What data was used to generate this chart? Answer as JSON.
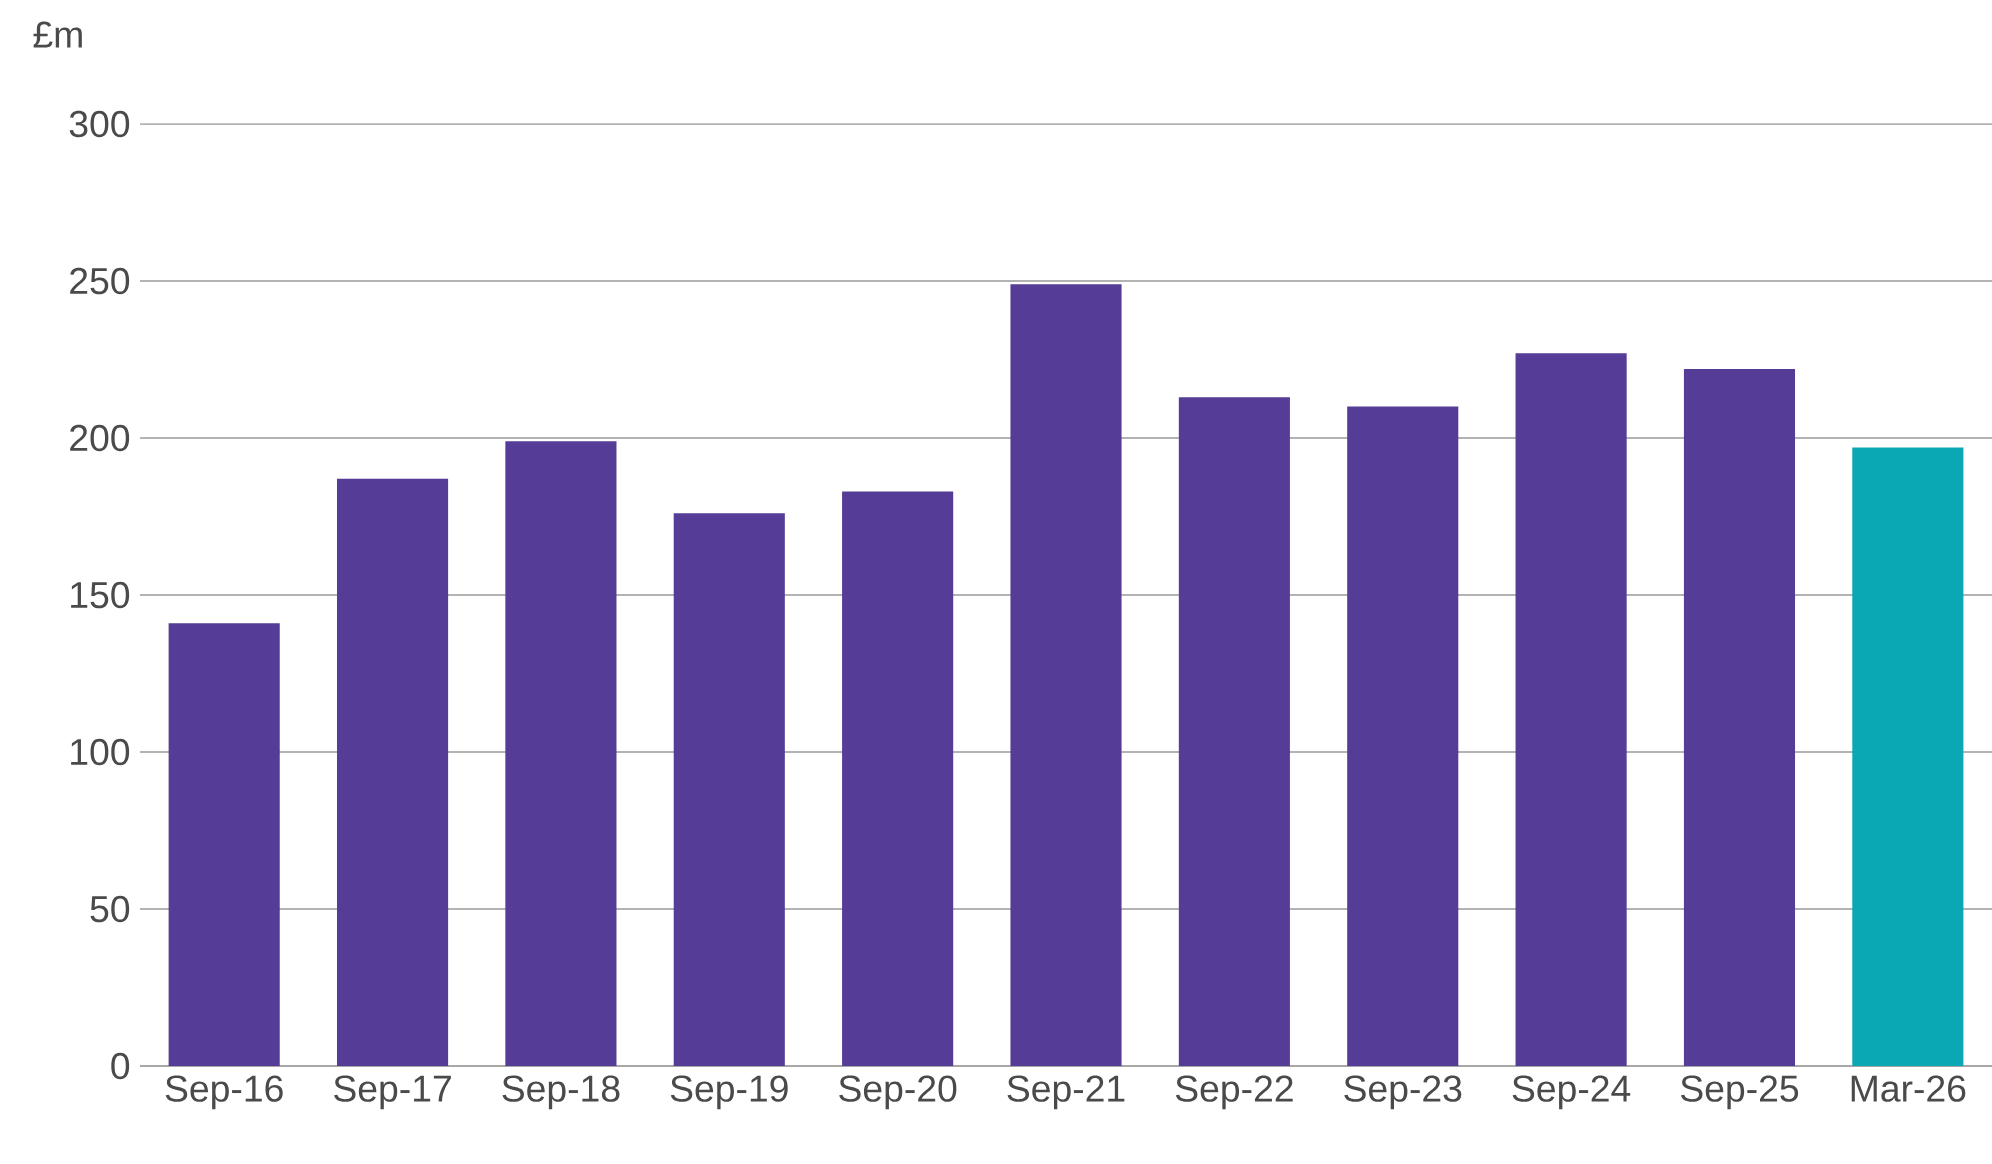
{
  "chart_data": {
    "type": "bar",
    "ylabel": "£m",
    "categories": [
      "Sep-16",
      "Sep-17",
      "Sep-18",
      "Sep-19",
      "Sep-20",
      "Sep-21",
      "Sep-22",
      "Sep-23",
      "Sep-24",
      "Sep-25",
      "Mar-26"
    ],
    "values": [
      141,
      187,
      199,
      176,
      183,
      249,
      213,
      210,
      227,
      222,
      197
    ],
    "colors": [
      "#553c96",
      "#553c96",
      "#553c96",
      "#553c96",
      "#553c96",
      "#553c96",
      "#553c96",
      "#553c96",
      "#553c96",
      "#553c96",
      "#0aa8b4"
    ],
    "ylim": [
      0,
      300
    ],
    "yticks": [
      0,
      50,
      100,
      150,
      200,
      250,
      300
    ],
    "grid": "y"
  }
}
